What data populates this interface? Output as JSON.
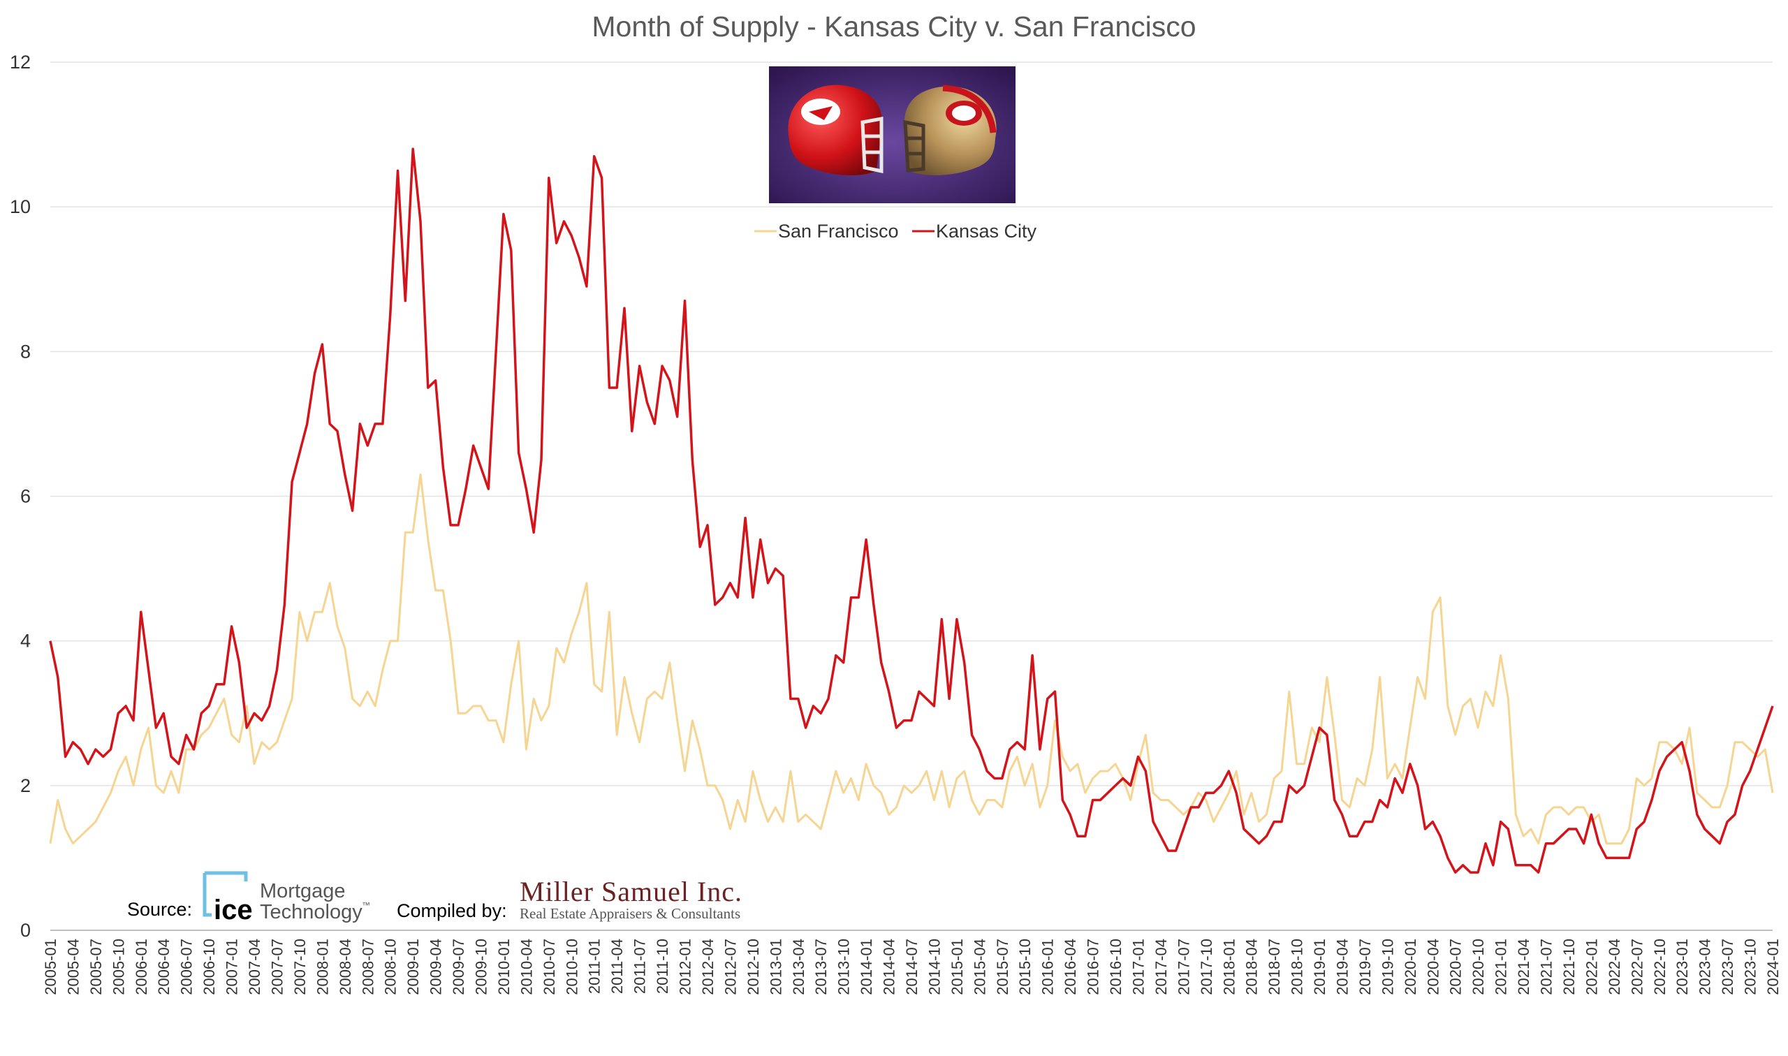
{
  "colors": {
    "san_francisco": "#F5D591",
    "kansas_city": "#D3141A",
    "title": "#595959",
    "grid": "#e3e3e3",
    "photo_bg": "#4a2a7a",
    "ice_blue": "#6EC1E4"
  },
  "icons": {
    "photo": "football-helmets-image",
    "source_logo": "ice-logo-icon"
  },
  "footer": {
    "source_label": "Source:",
    "source_brand": "ice",
    "source_brand_line1": "Mortgage",
    "source_brand_line2": "Technology",
    "source_brand_tm": "™",
    "compiled_label": "Compiled by:",
    "compiler_name": "Miller Samuel Inc.",
    "compiler_tagline": "Real Estate Appraisers & Consultants"
  },
  "chart_data": {
    "type": "line",
    "title": "Month of Supply - Kansas City v. San Francisco",
    "xlabel": "",
    "ylabel": "",
    "ylim": [
      0,
      12
    ],
    "yticks": [
      0,
      2,
      4,
      6,
      8,
      10,
      12
    ],
    "grid": true,
    "legend_position": "top-center",
    "x_start": "2005-01",
    "x_end": "2024-01",
    "x_tick_labels": [
      "2005-01",
      "2005-04",
      "2005-07",
      "2005-10",
      "2006-01",
      "2006-04",
      "2006-07",
      "2006-10",
      "2007-01",
      "2007-04",
      "2007-07",
      "2007-10",
      "2008-01",
      "2008-04",
      "2008-07",
      "2008-10",
      "2009-01",
      "2009-04",
      "2009-07",
      "2009-10",
      "2010-01",
      "2010-04",
      "2010-07",
      "2010-10",
      "2011-01",
      "2011-04",
      "2011-07",
      "2011-10",
      "2012-01",
      "2012-04",
      "2012-07",
      "2012-10",
      "2013-01",
      "2013-04",
      "2013-07",
      "2013-10",
      "2014-01",
      "2014-04",
      "2014-07",
      "2014-10",
      "2015-01",
      "2015-04",
      "2015-07",
      "2015-10",
      "2016-01",
      "2016-04",
      "2016-07",
      "2016-10",
      "2017-01",
      "2017-04",
      "2017-07",
      "2017-10",
      "2018-01",
      "2018-04",
      "2018-07",
      "2018-10",
      "2019-01",
      "2019-04",
      "2019-07",
      "2019-10",
      "2020-01",
      "2020-04",
      "2020-07",
      "2020-10",
      "2021-01",
      "2021-04",
      "2021-07",
      "2021-10",
      "2022-01",
      "2022-04",
      "2022-07",
      "2022-10",
      "2023-01",
      "2023-04",
      "2023-07",
      "2023-10",
      "2024-01"
    ],
    "series": [
      {
        "name": "San Francisco",
        "values": [
          1.2,
          1.8,
          1.4,
          1.2,
          1.3,
          1.4,
          1.5,
          1.7,
          1.9,
          2.2,
          2.4,
          2.0,
          2.5,
          2.8,
          2.0,
          1.9,
          2.2,
          1.9,
          2.5,
          2.5,
          2.7,
          2.8,
          3.0,
          3.2,
          2.7,
          2.6,
          3.1,
          2.3,
          2.6,
          2.5,
          2.6,
          2.9,
          3.2,
          4.4,
          4.0,
          4.4,
          4.4,
          4.8,
          4.2,
          3.9,
          3.2,
          3.1,
          3.3,
          3.1,
          3.6,
          4.0,
          4.0,
          5.5,
          5.5,
          6.3,
          5.4,
          4.7,
          4.7,
          4.0,
          3.0,
          3.0,
          3.1,
          3.1,
          2.9,
          2.9,
          2.6,
          3.4,
          4.0,
          2.5,
          3.2,
          2.9,
          3.1,
          3.9,
          3.7,
          4.1,
          4.4,
          4.8,
          3.4,
          3.3,
          4.4,
          2.7,
          3.5,
          3.0,
          2.6,
          3.2,
          3.3,
          3.2,
          3.7,
          2.9,
          2.2,
          2.9,
          2.5,
          2.0,
          2.0,
          1.8,
          1.4,
          1.8,
          1.5,
          2.2,
          1.8,
          1.5,
          1.7,
          1.5,
          2.2,
          1.5,
          1.6,
          1.5,
          1.4,
          1.8,
          2.2,
          1.9,
          2.1,
          1.8,
          2.3,
          2.0,
          1.9,
          1.6,
          1.7,
          2.0,
          1.9,
          2.0,
          2.2,
          1.8,
          2.2,
          1.7,
          2.1,
          2.2,
          1.8,
          1.6,
          1.8,
          1.8,
          1.7,
          2.2,
          2.4,
          2.0,
          2.3,
          1.7,
          2.0,
          2.9,
          2.4,
          2.2,
          2.3,
          1.9,
          2.1,
          2.2,
          2.2,
          2.3,
          2.1,
          1.8,
          2.3,
          2.7,
          1.9,
          1.8,
          1.8,
          1.7,
          1.6,
          1.7,
          1.9,
          1.8,
          1.5,
          1.7,
          1.9,
          2.2,
          1.6,
          1.9,
          1.5,
          1.6,
          2.1,
          2.2,
          3.3,
          2.3,
          2.3,
          2.8,
          2.6,
          3.5,
          2.7,
          1.8,
          1.7,
          2.1,
          2.0,
          2.5,
          3.5,
          2.1,
          2.3,
          2.1,
          2.8,
          3.5,
          3.2,
          4.4,
          4.6,
          3.1,
          2.7,
          3.1,
          3.2,
          2.8,
          3.3,
          3.1,
          3.8,
          3.2,
          1.6,
          1.3,
          1.4,
          1.2,
          1.6,
          1.7,
          1.7,
          1.6,
          1.7,
          1.7,
          1.5,
          1.6,
          1.2,
          1.2,
          1.2,
          1.4,
          2.1,
          2.0,
          2.1,
          2.6,
          2.6,
          2.5,
          2.3,
          2.8,
          1.9,
          1.8,
          1.7,
          1.7,
          2.0,
          2.6,
          2.6,
          2.5,
          2.4,
          2.5,
          1.9
        ]
      },
      {
        "name": "Kansas City",
        "values": [
          4.0,
          3.5,
          2.4,
          2.6,
          2.5,
          2.3,
          2.5,
          2.4,
          2.5,
          3.0,
          3.1,
          2.9,
          4.4,
          3.6,
          2.8,
          3.0,
          2.4,
          2.3,
          2.7,
          2.5,
          3.0,
          3.1,
          3.4,
          3.4,
          4.2,
          3.7,
          2.8,
          3.0,
          2.9,
          3.1,
          3.6,
          4.5,
          6.2,
          6.6,
          7.0,
          7.7,
          8.1,
          7.0,
          6.9,
          6.3,
          5.8,
          7.0,
          6.7,
          7.0,
          7.0,
          8.5,
          10.5,
          8.7,
          10.8,
          9.8,
          7.5,
          7.6,
          6.4,
          5.6,
          5.6,
          6.1,
          6.7,
          6.4,
          6.1,
          8.0,
          9.9,
          9.4,
          6.6,
          6.1,
          5.5,
          6.5,
          10.4,
          9.5,
          9.8,
          9.6,
          9.3,
          8.9,
          10.7,
          10.4,
          7.5,
          7.5,
          8.6,
          6.9,
          7.8,
          7.3,
          7.0,
          7.8,
          7.6,
          7.1,
          8.7,
          6.5,
          5.3,
          5.6,
          4.5,
          4.6,
          4.8,
          4.6,
          5.7,
          4.6,
          5.4,
          4.8,
          5.0,
          4.9,
          3.2,
          3.2,
          2.8,
          3.1,
          3.0,
          3.2,
          3.8,
          3.7,
          4.6,
          4.6,
          5.4,
          4.5,
          3.7,
          3.3,
          2.8,
          2.9,
          2.9,
          3.3,
          3.2,
          3.1,
          4.3,
          3.2,
          4.3,
          3.7,
          2.7,
          2.5,
          2.2,
          2.1,
          2.1,
          2.5,
          2.6,
          2.5,
          3.8,
          2.5,
          3.2,
          3.3,
          1.8,
          1.6,
          1.3,
          1.3,
          1.8,
          1.8,
          1.9,
          2.0,
          2.1,
          2.0,
          2.4,
          2.2,
          1.5,
          1.3,
          1.1,
          1.1,
          1.4,
          1.7,
          1.7,
          1.9,
          1.9,
          2.0,
          2.2,
          1.9,
          1.4,
          1.3,
          1.2,
          1.3,
          1.5,
          1.5,
          2.0,
          1.9,
          2.0,
          2.4,
          2.8,
          2.7,
          1.8,
          1.6,
          1.3,
          1.3,
          1.5,
          1.5,
          1.8,
          1.7,
          2.1,
          1.9,
          2.3,
          2.0,
          1.4,
          1.5,
          1.3,
          1.0,
          0.8,
          0.9,
          0.8,
          0.8,
          1.2,
          0.9,
          1.5,
          1.4,
          0.9,
          0.9,
          0.9,
          0.8,
          1.2,
          1.2,
          1.3,
          1.4,
          1.4,
          1.2,
          1.6,
          1.2,
          1.0,
          1.0,
          1.0,
          1.0,
          1.4,
          1.5,
          1.8,
          2.2,
          2.4,
          2.5,
          2.6,
          2.2,
          1.6,
          1.4,
          1.3,
          1.2,
          1.5,
          1.6,
          2.0,
          2.2,
          2.5,
          2.8,
          3.1
        ]
      }
    ]
  }
}
